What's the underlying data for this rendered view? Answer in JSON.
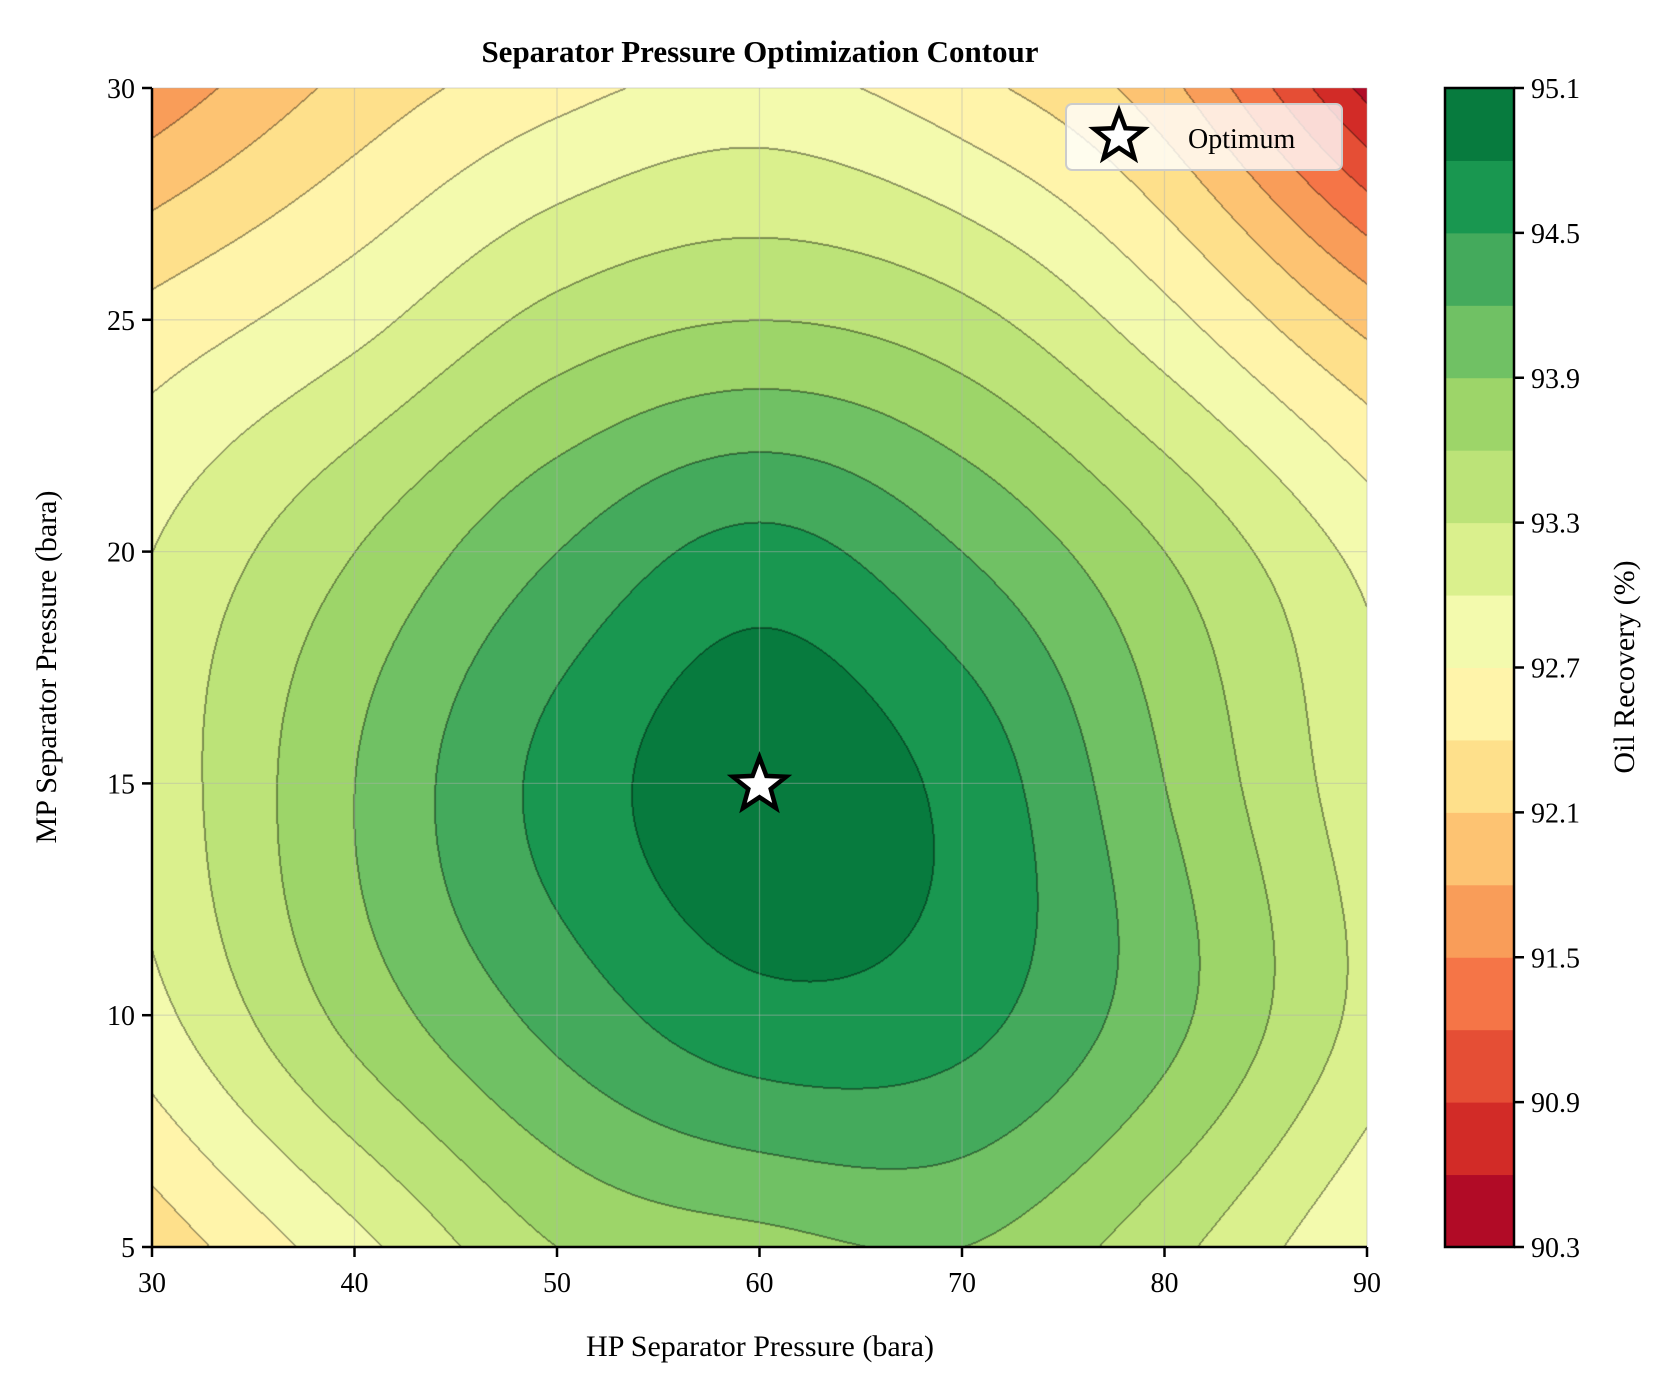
{
  "chart_data": {
    "type": "contour",
    "title": "Separator Pressure Optimization Contour",
    "xlabel": "HP Separator Pressure (bara)",
    "ylabel": "MP Separator Pressure (bara)",
    "xlim": [
      30,
      90
    ],
    "ylim": [
      5,
      30
    ],
    "xticks": [
      "30",
      "40",
      "50",
      "60",
      "70",
      "80",
      "90"
    ],
    "yticks": [
      "5",
      "10",
      "15",
      "20",
      "25",
      "30"
    ],
    "grid": true,
    "grid_x": [
      30,
      40,
      50,
      60,
      70,
      80,
      90
    ],
    "grid_y": [
      5,
      10,
      15,
      20,
      25,
      30
    ],
    "z": [
      [
        92.2,
        92.9,
        93.6,
        93.8,
        93.9,
        93.4,
        92.7
      ],
      [
        92.9,
        93.7,
        94.3,
        94.7,
        94.6,
        94.0,
        93.2
      ],
      [
        93.1,
        93.9,
        94.6,
        95.0,
        94.7,
        93.9,
        93.1
      ],
      [
        93.0,
        93.6,
        94.2,
        94.6,
        94.2,
        93.6,
        92.9
      ],
      [
        92.5,
        92.9,
        93.4,
        93.6,
        93.4,
        92.8,
        92.0
      ],
      [
        91.6,
        92.2,
        92.6,
        92.8,
        92.5,
        91.9,
        90.5
      ]
    ],
    "levels": [
      90.3,
      90.6,
      90.9,
      91.2,
      91.5,
      91.8,
      92.1,
      92.4,
      92.7,
      93.0,
      93.3,
      93.6,
      93.9,
      94.2,
      94.5,
      94.8,
      95.1
    ],
    "colormap": [
      "#b10b26",
      "#d22b27",
      "#e54e35",
      "#f57547",
      "#f99d59",
      "#fdc372",
      "#fee08b",
      "#fff4aa",
      "#f3faad",
      "#daf08d",
      "#bce378",
      "#9dd569",
      "#70c164",
      "#44aa5c",
      "#199750",
      "#077b3e"
    ],
    "marker": {
      "label": "Optimum",
      "x": 60,
      "y": 15,
      "icon": "star-icon"
    },
    "legend_position": "top-right",
    "colorbar": {
      "label": "Oil Recovery (%)",
      "ticks": [
        "90.3",
        "90.9",
        "91.5",
        "92.1",
        "92.7",
        "93.3",
        "93.9",
        "94.5",
        "95.1"
      ]
    }
  }
}
